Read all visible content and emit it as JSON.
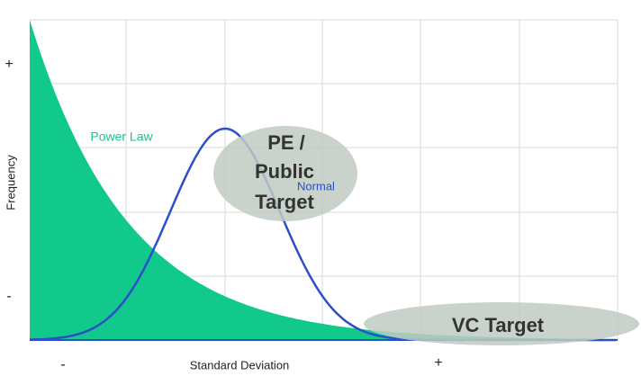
{
  "y_axis": {
    "label": "Frequency",
    "high": "+",
    "low": "-"
  },
  "x_axis": {
    "label": "Standard Deviation",
    "low": "-",
    "high": "+"
  },
  "curves": [
    {
      "label": "Power Law"
    },
    {
      "label": "Normal"
    }
  ],
  "regions": [
    {
      "label_lines": [
        "PE /",
        "Public",
        "Target"
      ]
    },
    {
      "label": "VC Target"
    }
  ]
}
